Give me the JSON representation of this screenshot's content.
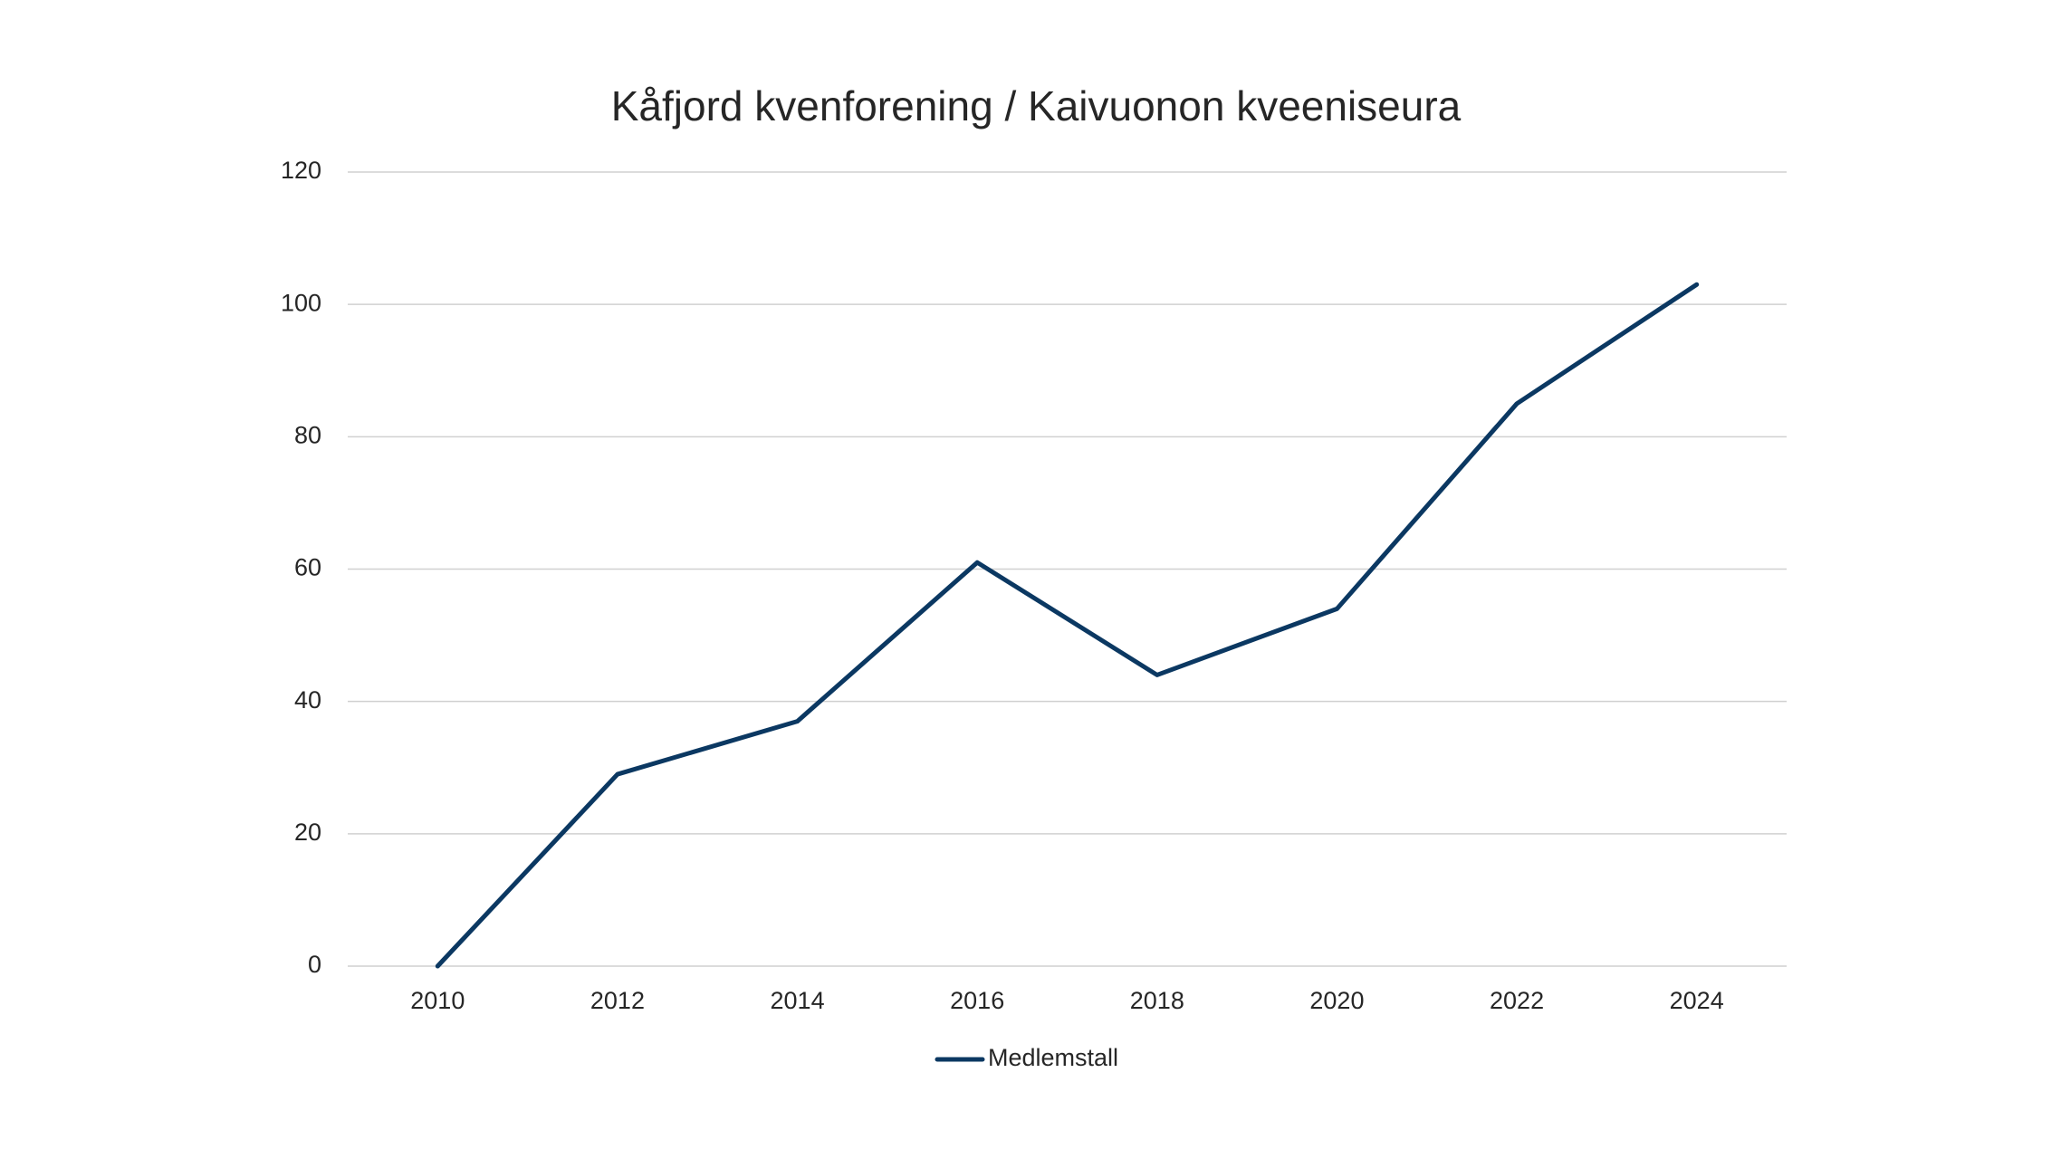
{
  "chart_data": {
    "type": "line",
    "title": "Kåfjord kvenforening / Kaivuonon kveeniseura",
    "categories": [
      "2010",
      "2012",
      "2014",
      "2016",
      "2018",
      "2020",
      "2022",
      "2024"
    ],
    "series": [
      {
        "name": "Medlemstall",
        "color": "#0b3862",
        "values": [
          0,
          29,
          37,
          61,
          44,
          54,
          85,
          103
        ]
      }
    ],
    "ylim": [
      0,
      120
    ],
    "yticks": [
      0,
      20,
      40,
      60,
      80,
      100,
      120
    ],
    "grid": true,
    "legend": "bottom"
  }
}
